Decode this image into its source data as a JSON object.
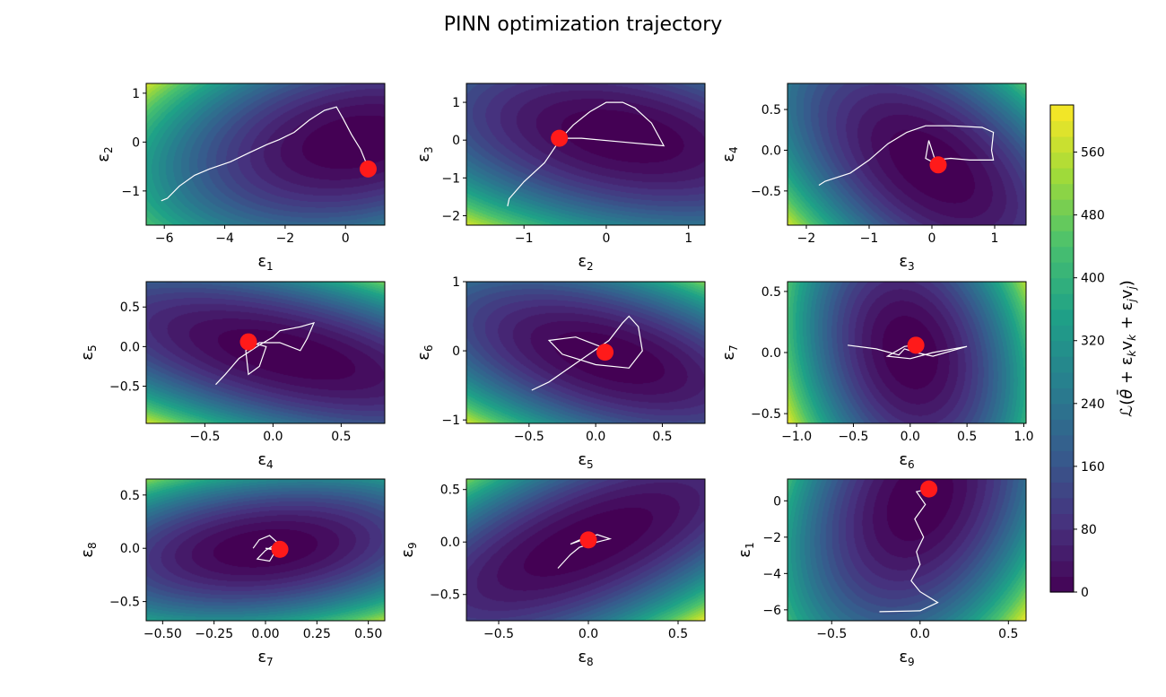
{
  "figure": {
    "title": "PINN optimization trajectory"
  },
  "colorbar": {
    "label_parts": [
      "ℒ(",
      "θ̄",
      " + ε",
      "k",
      "v",
      "k",
      " + ε",
      "j",
      "v",
      "j",
      ")"
    ],
    "min": 0,
    "max": 620,
    "ticks": [
      "0",
      "80",
      "160",
      "240",
      "320",
      "400",
      "480",
      "560"
    ],
    "tick_values": [
      0,
      80,
      160,
      240,
      320,
      400,
      480,
      560
    ],
    "colormap": [
      "#440154",
      "#46327e",
      "#365c8d",
      "#277f8e",
      "#1fa187",
      "#4ac16d",
      "#a0da39",
      "#fde725"
    ]
  },
  "colors": {
    "trajectory": "#ffffff",
    "marker": "#ff1a1a"
  },
  "chart_data": [
    {
      "type": "contour",
      "xlabel": "ε",
      "xsub": "1",
      "ylabel": "ε",
      "ysub": "2",
      "xlim": [
        -6.6,
        1.3
      ],
      "ylim": [
        -1.7,
        1.2
      ],
      "xticks": [
        -6,
        -4,
        -2,
        0
      ],
      "xtick_labels": [
        "−6",
        "−4",
        "−2",
        "0"
      ],
      "yticks": [
        -1,
        0,
        1
      ],
      "ytick_labels": [
        "−1",
        "0",
        "1"
      ],
      "surface": {
        "center": [
          0.3,
          0.0
        ],
        "a": 0.12,
        "b": 1.2,
        "c": -0.2,
        "max": 600
      },
      "trajectory": [
        [
          -6.1,
          -1.2
        ],
        [
          -5.9,
          -1.15
        ],
        [
          -5.5,
          -0.9
        ],
        [
          -5.0,
          -0.68
        ],
        [
          -4.5,
          -0.55
        ],
        [
          -3.8,
          -0.4
        ],
        [
          -3.2,
          -0.22
        ],
        [
          -2.6,
          -0.05
        ],
        [
          -2.2,
          0.05
        ],
        [
          -1.7,
          0.2
        ],
        [
          -1.2,
          0.45
        ],
        [
          -0.7,
          0.65
        ],
        [
          -0.3,
          0.72
        ],
        [
          -0.1,
          0.5
        ],
        [
          0.2,
          0.15
        ],
        [
          0.5,
          -0.15
        ],
        [
          0.7,
          -0.45
        ],
        [
          0.75,
          -0.55
        ]
      ],
      "marker": [
        0.75,
        -0.55
      ]
    },
    {
      "type": "contour",
      "xlabel": "ε",
      "xsub": "2",
      "ylabel": "ε",
      "ysub": "3",
      "xlim": [
        -1.7,
        1.2
      ],
      "ylim": [
        -2.25,
        1.5
      ],
      "xticks": [
        -1,
        0,
        1
      ],
      "xtick_labels": [
        "−1",
        "0",
        "1"
      ],
      "yticks": [
        -2,
        -1,
        0,
        1
      ],
      "ytick_labels": [
        "−2",
        "−1",
        "0",
        "1"
      ],
      "surface": {
        "center": [
          0.2,
          0.1
        ],
        "a": 0.8,
        "b": 0.9,
        "c": 0.6,
        "max": 600
      },
      "trajectory": [
        [
          -1.2,
          -1.75
        ],
        [
          -1.18,
          -1.55
        ],
        [
          -1.0,
          -1.1
        ],
        [
          -0.75,
          -0.6
        ],
        [
          -0.55,
          0.05
        ],
        [
          -0.4,
          0.4
        ],
        [
          -0.2,
          0.75
        ],
        [
          0.0,
          1.0
        ],
        [
          0.2,
          1.0
        ],
        [
          0.35,
          0.85
        ],
        [
          0.55,
          0.45
        ],
        [
          0.65,
          0.05
        ],
        [
          0.7,
          -0.15
        ],
        [
          0.2,
          -0.05
        ],
        [
          -0.3,
          0.05
        ],
        [
          -0.6,
          0.05
        ]
      ],
      "marker": [
        -0.57,
        0.05
      ]
    },
    {
      "type": "contour",
      "xlabel": "ε",
      "xsub": "3",
      "ylabel": "ε",
      "ysub": "4",
      "xlim": [
        -2.3,
        1.5
      ],
      "ylim": [
        -0.92,
        0.82
      ],
      "xticks": [
        -2,
        -1,
        0,
        1
      ],
      "xtick_labels": [
        "−2",
        "−1",
        "0",
        "1"
      ],
      "yticks": [
        -0.5,
        0,
        0.5
      ],
      "ytick_labels": [
        "−0.5",
        "0.0",
        "0.5"
      ],
      "surface": {
        "center": [
          0.0,
          -0.2
        ],
        "a": 1.0,
        "b": 2.3,
        "c": 1.6,
        "max": 600
      },
      "trajectory": [
        [
          -1.8,
          -0.43
        ],
        [
          -1.7,
          -0.38
        ],
        [
          -1.3,
          -0.28
        ],
        [
          -1.0,
          -0.12
        ],
        [
          -0.7,
          0.08
        ],
        [
          -0.4,
          0.22
        ],
        [
          -0.1,
          0.3
        ],
        [
          0.3,
          0.3
        ],
        [
          0.8,
          0.28
        ],
        [
          0.98,
          0.22
        ],
        [
          0.95,
          0.0
        ],
        [
          0.98,
          -0.12
        ],
        [
          0.6,
          -0.12
        ],
        [
          0.3,
          -0.1
        ],
        [
          0.05,
          -0.12
        ],
        [
          -0.02,
          0.05
        ],
        [
          -0.05,
          0.12
        ],
        [
          -0.1,
          -0.1
        ],
        [
          0.1,
          -0.18
        ]
      ],
      "marker": [
        0.1,
        -0.18
      ]
    },
    {
      "type": "contour",
      "xlabel": "ε",
      "xsub": "4",
      "ylabel": "ε",
      "ysub": "5",
      "xlim": [
        -0.93,
        0.82
      ],
      "ylim": [
        -0.97,
        0.82
      ],
      "xticks": [
        -0.5,
        0,
        0.5
      ],
      "xtick_labels": [
        "−0.5",
        "0.0",
        "0.5"
      ],
      "yticks": [
        -0.5,
        0,
        0.5
      ],
      "ytick_labels": [
        "−0.5",
        "0.0",
        "0.5"
      ],
      "surface": {
        "center": [
          0.1,
          -0.1
        ],
        "a": 1.2,
        "b": 3.0,
        "c": 2.2,
        "max": 600
      },
      "trajectory": [
        [
          -0.42,
          -0.48
        ],
        [
          -0.35,
          -0.35
        ],
        [
          -0.25,
          -0.15
        ],
        [
          -0.1,
          0.02
        ],
        [
          0.0,
          0.12
        ],
        [
          0.05,
          0.2
        ],
        [
          0.2,
          0.25
        ],
        [
          0.3,
          0.3
        ],
        [
          0.25,
          0.1
        ],
        [
          0.2,
          -0.05
        ],
        [
          0.05,
          0.05
        ],
        [
          -0.1,
          0.05
        ],
        [
          -0.2,
          -0.05
        ],
        [
          -0.18,
          -0.35
        ],
        [
          -0.1,
          -0.25
        ],
        [
          -0.05,
          0.0
        ],
        [
          -0.18,
          0.06
        ]
      ],
      "marker": [
        -0.18,
        0.06
      ]
    },
    {
      "type": "contour",
      "xlabel": "ε",
      "xsub": "5",
      "ylabel": "ε",
      "ysub": "6",
      "xlim": [
        -0.97,
        0.82
      ],
      "ylim": [
        -1.05,
        1.0
      ],
      "xticks": [
        -0.5,
        0,
        0.5
      ],
      "xtick_labels": [
        "−0.5",
        "0.0",
        "0.5"
      ],
      "yticks": [
        -1,
        0,
        1
      ],
      "ytick_labels": [
        "−1",
        "0",
        "1"
      ],
      "surface": {
        "center": [
          0.1,
          -0.1
        ],
        "a": 1.3,
        "b": 1.6,
        "c": 1.5,
        "max": 600
      },
      "trajectory": [
        [
          -0.48,
          -0.57
        ],
        [
          -0.35,
          -0.45
        ],
        [
          -0.2,
          -0.25
        ],
        [
          -0.05,
          -0.05
        ],
        [
          0.1,
          0.15
        ],
        [
          0.2,
          0.4
        ],
        [
          0.25,
          0.5
        ],
        [
          0.32,
          0.35
        ],
        [
          0.35,
          0.0
        ],
        [
          0.25,
          -0.25
        ],
        [
          0.0,
          -0.2
        ],
        [
          -0.25,
          -0.05
        ],
        [
          -0.35,
          0.15
        ],
        [
          -0.15,
          0.2
        ],
        [
          0.05,
          0.05
        ],
        [
          0.07,
          -0.02
        ]
      ],
      "marker": [
        0.07,
        -0.02
      ]
    },
    {
      "type": "contour",
      "xlabel": "ε",
      "xsub": "6",
      "ylabel": "ε",
      "ysub": "7",
      "xlim": [
        -1.08,
        1.02
      ],
      "ylim": [
        -0.58,
        0.58
      ],
      "xticks": [
        -1,
        -0.5,
        0,
        0.5,
        1
      ],
      "xtick_labels": [
        "−1.0",
        "−0.5",
        "0.0",
        "0.5",
        "1.0"
      ],
      "yticks": [
        -0.5,
        0,
        0.5
      ],
      "ytick_labels": [
        "−0.5",
        "0.0",
        "0.5"
      ],
      "surface": {
        "center": [
          0.0,
          0.0
        ],
        "a": 0.75,
        "b": 0.5,
        "c": 0.25,
        "max": 620
      },
      "trajectory": [
        [
          -0.55,
          0.06
        ],
        [
          -0.3,
          0.03
        ],
        [
          -0.1,
          -0.02
        ],
        [
          -0.05,
          0.03
        ],
        [
          0.05,
          0.0
        ],
        [
          0.2,
          -0.03
        ],
        [
          0.5,
          0.05
        ],
        [
          0.2,
          0.0
        ],
        [
          0.0,
          -0.05
        ],
        [
          -0.2,
          -0.03
        ],
        [
          -0.05,
          0.05
        ],
        [
          0.05,
          0.06
        ]
      ],
      "marker": [
        0.05,
        0.06
      ]
    },
    {
      "type": "contour",
      "xlabel": "ε",
      "xsub": "7",
      "ylabel": "ε",
      "ysub": "8",
      "xlim": [
        -0.58,
        0.58
      ],
      "ylim": [
        -0.68,
        0.65
      ],
      "xticks": [
        -0.5,
        -0.25,
        0,
        0.25,
        0.5
      ],
      "xtick_labels": [
        "−0.50",
        "−0.25",
        "0.00",
        "0.25",
        "0.50"
      ],
      "yticks": [
        -0.5,
        0,
        0.5
      ],
      "ytick_labels": [
        "−0.5",
        "0.0",
        "0.5"
      ],
      "surface": {
        "center": [
          0.0,
          0.0
        ],
        "a": 1.3,
        "b": 2.6,
        "c": -0.9,
        "max": 560
      },
      "trajectory": [
        [
          -0.06,
          0.0
        ],
        [
          -0.03,
          0.08
        ],
        [
          0.02,
          0.12
        ],
        [
          0.06,
          0.05
        ],
        [
          0.0,
          -0.02
        ],
        [
          -0.04,
          -0.1
        ],
        [
          0.02,
          -0.12
        ],
        [
          0.05,
          -0.02
        ],
        [
          0.0,
          0.0
        ],
        [
          0.07,
          -0.01
        ]
      ],
      "marker": [
        0.07,
        -0.01
      ]
    },
    {
      "type": "contour",
      "xlabel": "ε",
      "xsub": "8",
      "ylabel": "ε",
      "ysub": "9",
      "xlim": [
        -0.68,
        0.65
      ],
      "ylim": [
        -0.75,
        0.6
      ],
      "xticks": [
        -0.5,
        0,
        0.5
      ],
      "xtick_labels": [
        "−0.5",
        "0.0",
        "0.5"
      ],
      "yticks": [
        -0.5,
        0,
        0.5
      ],
      "ytick_labels": [
        "−0.5",
        "0.0",
        "0.5"
      ],
      "surface": {
        "center": [
          0.0,
          0.0
        ],
        "a": 1.5,
        "b": 1.8,
        "c": -2.3,
        "max": 620
      },
      "trajectory": [
        [
          -0.17,
          -0.25
        ],
        [
          -0.1,
          -0.12
        ],
        [
          -0.05,
          -0.05
        ],
        [
          0.05,
          0.0
        ],
        [
          0.12,
          0.03
        ],
        [
          0.05,
          0.07
        ],
        [
          -0.05,
          0.02
        ],
        [
          -0.1,
          -0.02
        ],
        [
          0.0,
          0.04
        ],
        [
          0.0,
          0.02
        ]
      ],
      "marker": [
        0.0,
        0.02
      ]
    },
    {
      "type": "contour",
      "xlabel": "ε",
      "xsub": "9",
      "ylabel": "ε",
      "ysub": "1",
      "xlim": [
        -0.75,
        0.6
      ],
      "ylim": [
        -6.6,
        1.2
      ],
      "xticks": [
        -0.5,
        0,
        0.5
      ],
      "xtick_labels": [
        "−0.5",
        "0.0",
        "0.5"
      ],
      "yticks": [
        -6,
        -4,
        -2,
        0
      ],
      "ytick_labels": [
        "−6",
        "−4",
        "−2",
        "0"
      ],
      "surface": {
        "center": [
          0.0,
          0.0
        ],
        "a": 2.2,
        "b": 0.016,
        "c": -0.12,
        "max": 620
      },
      "trajectory": [
        [
          -0.23,
          -6.1
        ],
        [
          0.0,
          -6.05
        ],
        [
          0.1,
          -5.6
        ],
        [
          0.0,
          -5.0
        ],
        [
          -0.05,
          -4.4
        ],
        [
          0.0,
          -3.5
        ],
        [
          -0.02,
          -2.8
        ],
        [
          0.02,
          -2.0
        ],
        [
          -0.03,
          -1.0
        ],
        [
          0.03,
          -0.2
        ],
        [
          -0.02,
          0.5
        ],
        [
          0.05,
          0.65
        ]
      ],
      "marker": [
        0.05,
        0.65
      ]
    }
  ]
}
